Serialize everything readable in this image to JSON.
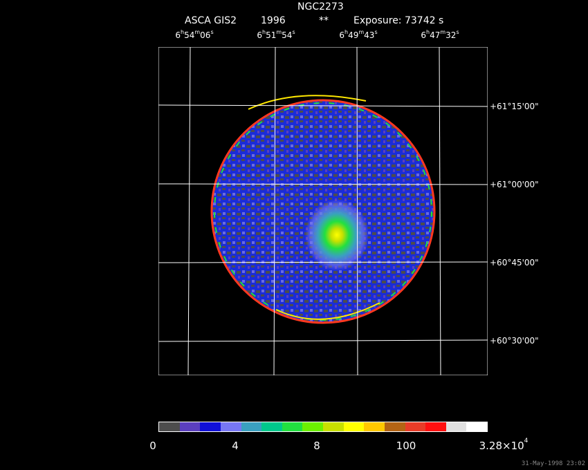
{
  "header": {
    "object": "NGC2273",
    "instrument": "ASCA GIS2",
    "year": "1996",
    "stars": "**",
    "exposure": "Exposure: 73742 s"
  },
  "ra_ticks": [
    {
      "h": "6",
      "m": "54",
      "s": "06"
    },
    {
      "h": "6",
      "m": "51",
      "s": "54"
    },
    {
      "h": "6",
      "m": "49",
      "s": "43"
    },
    {
      "h": "6",
      "m": "47",
      "s": "32"
    }
  ],
  "dec_ticks": [
    "+61°15'00\"",
    "+61°00'00\"",
    "+60°45'00\"",
    "+60°30'00\""
  ],
  "colorbar": {
    "colors": [
      "#4d4d4d",
      "#5b3fbf",
      "#1010d8",
      "#7777f4",
      "#3aa0c0",
      "#00c88c",
      "#22e040",
      "#6cf000",
      "#c8e000",
      "#ffff00",
      "#ffc800",
      "#b46414",
      "#e83c28",
      "#ff1010",
      "#e0e0e0",
      "#ffffff"
    ],
    "labels": [
      "0",
      "4",
      "8",
      "100"
    ],
    "max_mantissa": "3.28×10",
    "max_exp": "4"
  },
  "footer": {
    "timestamp": "31-May-1998 23:02"
  }
}
